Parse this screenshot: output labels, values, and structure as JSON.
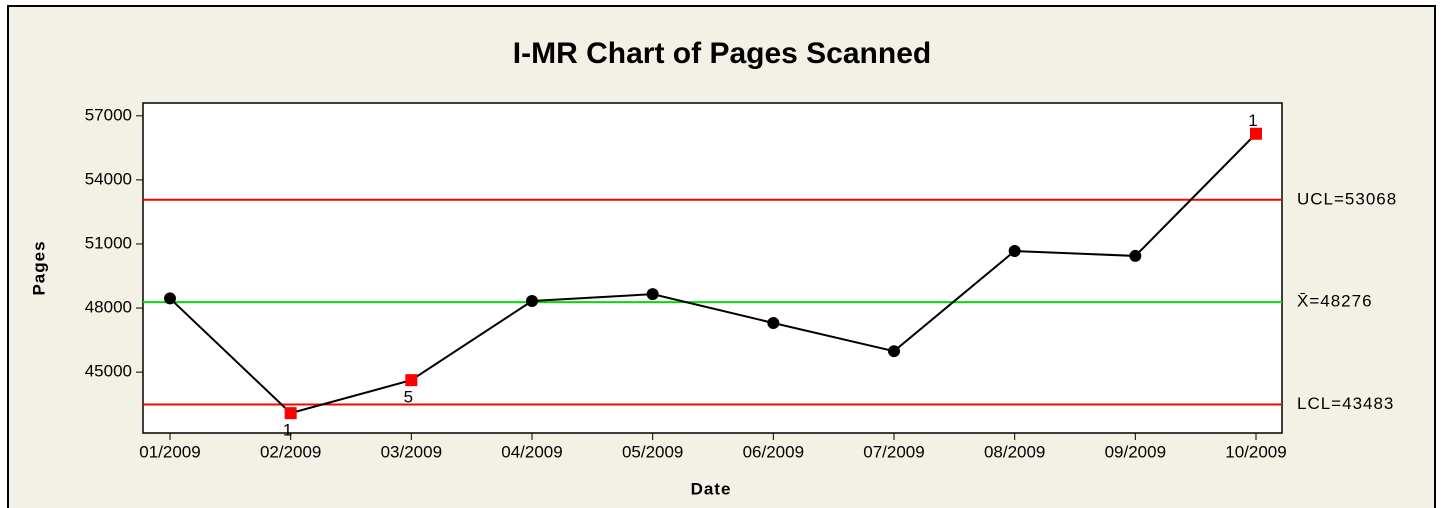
{
  "chart_data": {
    "type": "line",
    "title": "I-MR Chart of Pages Scanned",
    "x_label": "Date",
    "y_label": "Pages",
    "categories": [
      "01/2009",
      "02/2009",
      "03/2009",
      "04/2009",
      "05/2009",
      "06/2009",
      "07/2009",
      "08/2009",
      "09/2009",
      "10/2009"
    ],
    "series": [
      {
        "name": "Pages",
        "color": "#000000",
        "values": [
          48450,
          43080,
          44625,
          48330,
          48650,
          47300,
          45980,
          50670,
          50440,
          56160
        ]
      }
    ],
    "flag_color": "#ff0000",
    "flag_labels": [
      null,
      "1",
      "5",
      null,
      null,
      null,
      null,
      null,
      null,
      "1"
    ],
    "control_lines": [
      {
        "label": "UCL=53068",
        "value": 53068,
        "color": "#ff0000"
      },
      {
        "label": "X̄=48276",
        "value": 48276,
        "color": "#00e000"
      },
      {
        "label": "LCL=43483",
        "value": 43483,
        "color": "#ff0000"
      }
    ],
    "ylim": [
      42150,
      57600
    ],
    "yticks": [
      45000,
      48000,
      51000,
      54000,
      57000
    ]
  }
}
